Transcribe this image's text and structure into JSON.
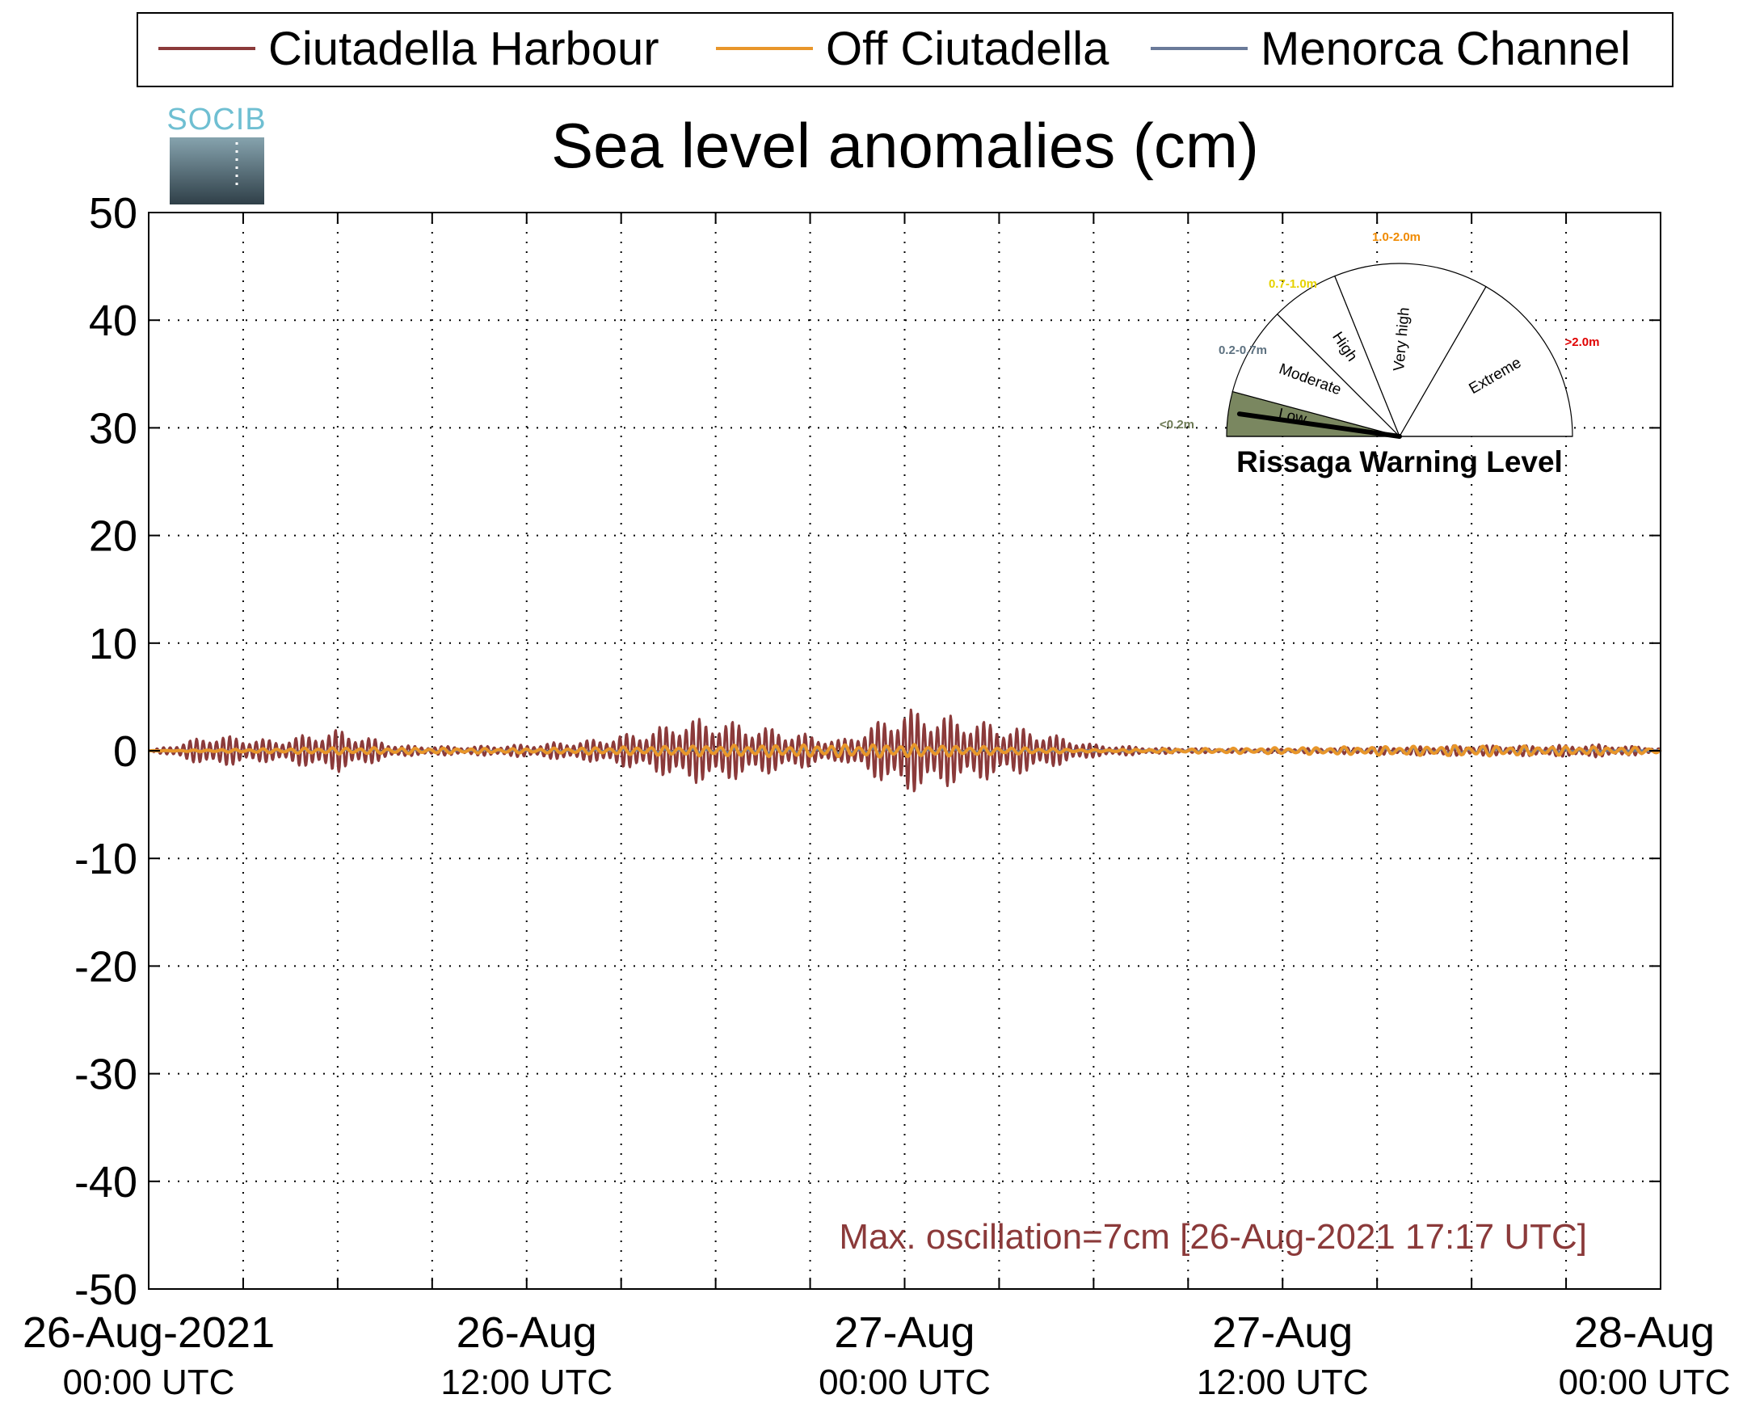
{
  "chart_data": {
    "type": "line",
    "title": "Sea level anomalies (cm)",
    "ylabel": "",
    "xlabel": "",
    "ylim": [
      -50,
      50
    ],
    "yticks": [
      50,
      40,
      30,
      20,
      10,
      0,
      -10,
      -20,
      -30,
      -40,
      -50
    ],
    "xlim": [
      "2021-08-26 00:00",
      "2021-08-28 00:00"
    ],
    "xticks": [
      {
        "x": "2021-08-26 00:00",
        "line1": "26-Aug-2021",
        "line2": "00:00 UTC"
      },
      {
        "x": "2021-08-26 12:00",
        "line1": "26-Aug",
        "line2": "12:00 UTC"
      },
      {
        "x": "2021-08-27 00:00",
        "line1": "27-Aug",
        "line2": "00:00 UTC"
      },
      {
        "x": "2021-08-27 12:00",
        "line1": "27-Aug",
        "line2": "12:00 UTC"
      },
      {
        "x": "2021-08-28 00:00",
        "line1": "28-Aug",
        "line2": "00:00 UTC"
      }
    ],
    "grid": true,
    "legend_position": "top",
    "series": [
      {
        "name": "Ciutadella Harbour",
        "color": "#8b3a3a",
        "x": [
          "2021-08-26 00:00",
          "2021-08-26 02:00",
          "2021-08-26 04:00",
          "2021-08-26 06:00",
          "2021-08-26 08:00",
          "2021-08-26 10:00",
          "2021-08-26 12:00",
          "2021-08-26 14:00",
          "2021-08-26 16:00",
          "2021-08-26 17:00",
          "2021-08-26 18:00",
          "2021-08-26 20:00",
          "2021-08-26 22:00",
          "2021-08-27 00:00",
          "2021-08-27 02:00",
          "2021-08-27 04:00",
          "2021-08-27 06:00",
          "2021-08-27 08:00",
          "2021-08-27 10:00",
          "2021-08-27 12:00",
          "2021-08-27 14:00",
          "2021-08-27 16:00",
          "2021-08-27 18:00",
          "2021-08-27 20:00",
          "2021-08-27 22:00",
          "2021-08-28 00:00"
        ],
        "y": [
          0,
          1.5,
          1,
          2,
          0.5,
          0.4,
          0.6,
          1,
          2,
          3,
          3,
          2,
          1,
          4,
          3,
          2,
          0.6,
          0.3,
          0.2,
          0.2,
          0.3,
          0.4,
          0.5,
          0.5,
          0.6,
          0.3
        ]
      },
      {
        "name": "Off Ciutadella",
        "color": "#e8962a",
        "x": [
          "2021-08-26 00:00",
          "2021-08-26 06:00",
          "2021-08-26 12:00",
          "2021-08-26 18:00",
          "2021-08-27 00:00",
          "2021-08-27 06:00",
          "2021-08-27 12:00",
          "2021-08-27 18:00",
          "2021-08-28 00:00"
        ],
        "y": [
          0,
          0.3,
          0.2,
          0.5,
          0.6,
          0.1,
          0.3,
          0.5,
          0.3
        ]
      },
      {
        "name": "Menorca Channel",
        "color": "#6a7a99",
        "x": [
          "2021-08-26 00:00",
          "2021-08-26 06:00",
          "2021-08-26 12:00",
          "2021-08-26 18:00",
          "2021-08-27 00:00",
          "2021-08-27 06:00",
          "2021-08-27 12:00",
          "2021-08-27 18:00",
          "2021-08-28 00:00"
        ],
        "y": [
          0,
          0.2,
          0.1,
          0.2,
          0.3,
          0,
          0.2,
          0.3,
          0
        ]
      }
    ],
    "annotation": {
      "text": "Max. oscillation=7cm [26-Aug-2021 17:17 UTC]",
      "color": "#8b3a3a"
    }
  },
  "logo": {
    "text": "SOCIB"
  },
  "gauge": {
    "title": "Rissaga Warning Level",
    "current_level": "Low",
    "sectors": [
      {
        "name": "Low",
        "range": "<0.2m",
        "color": "#7a8760",
        "range_color": "#6d7a55"
      },
      {
        "name": "Moderate",
        "range": "0.2-0.7m",
        "color": "#ffffff",
        "range_color": "#5d7180"
      },
      {
        "name": "High",
        "range": "0.7-1.0m",
        "color": "#ffffff",
        "range_color": "#e6d200"
      },
      {
        "name": "Very high",
        "range": "1.0-2.0m",
        "color": "#ffffff",
        "range_color": "#f08a00"
      },
      {
        "name": "Extreme",
        "range": ">2.0m",
        "color": "#ffffff",
        "range_color": "#e00000"
      }
    ]
  }
}
